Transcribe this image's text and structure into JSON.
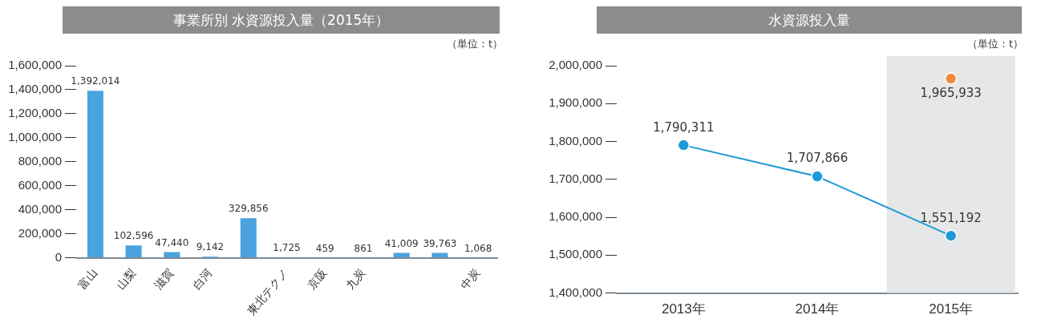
{
  "chart_data": [
    {
      "type": "bar",
      "title": "事業所別 水資源投入量（2015年）",
      "annotations": [
        "（単位：t）"
      ],
      "categories": [
        "富山",
        "山梨",
        "滋賀",
        "白河",
        null,
        "東北テクノ",
        "京阪",
        "九炭",
        null,
        null,
        "中炭"
      ],
      "values": [
        1392014,
        102596,
        47440,
        9142,
        329856,
        1725,
        459,
        861,
        41009,
        39763,
        1068
      ],
      "color": "#4aa3df",
      "value_labels": [
        "1,392,014",
        "102,596",
        "47,440",
        "9,142",
        "329,856",
        "1,725",
        "459",
        "861",
        "41,009",
        "39,763",
        "1,068"
      ],
      "ylim": [
        0,
        1600000
      ],
      "yticks": [
        0,
        {
          "value": 200000,
          "label": "200,000"
        },
        {
          "value": 400000,
          "label": "400,000"
        },
        {
          "value": 600000,
          "label": "600,000"
        },
        {
          "value": 800000,
          "label": "800,000"
        },
        {
          "value": 1000000,
          "label": "1,000,000"
        },
        {
          "value": 1200000,
          "label": "1,200,000"
        },
        {
          "value": 1400000,
          "label": "1,400,000"
        },
        {
          "value": 1600000,
          "label": "1,600,000"
        }
      ]
    },
    {
      "type": "line",
      "title": "水資源投入量",
      "annotations": [
        "（単位：t）"
      ],
      "categories": [
        "2013年",
        "2014年",
        "2015年"
      ],
      "series": [
        {
          "color": "#1e9ad6",
          "values": [
            1790311,
            1707866,
            1551192
          ],
          "value_labels": [
            "1,790,311",
            "1,707,866",
            "1,551,192"
          ]
        },
        {
          "color": "#f08a3c",
          "values": [
            null,
            null,
            1965933
          ],
          "value_labels": [
            null,
            null,
            "1,965,933"
          ]
        }
      ],
      "marker": "circle",
      "line_style": "solid",
      "bands": [
        {
          "axis": "x",
          "from": "2015年",
          "to": "2015年",
          "color": "#e6e7e8"
        }
      ],
      "ylim": [
        1400000,
        2000000
      ],
      "yticks": [
        {
          "value": 1400000,
          "label": "1,400,000"
        },
        {
          "value": 1500000,
          "label": "1,500,000"
        },
        {
          "value": 1600000,
          "label": "1,600,000"
        },
        {
          "value": 1700000,
          "label": "1,700,000"
        },
        {
          "value": 1800000,
          "label": "1,800,000"
        },
        {
          "value": 1900000,
          "label": "1,900,000"
        },
        {
          "value": 2000000,
          "label": "2,000,000"
        }
      ]
    }
  ]
}
